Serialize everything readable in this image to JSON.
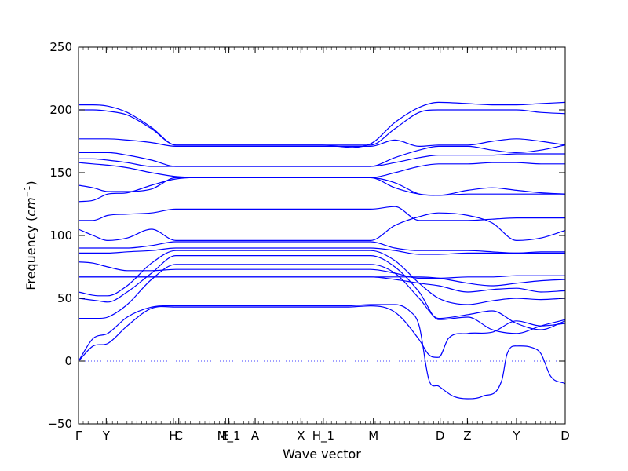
{
  "chart_data": {
    "type": "line",
    "title": "",
    "xlabel": "Wave vector",
    "ylabel_text": "Frequency (",
    "ylabel_unit": "cm",
    "ylabel_exp": "−1",
    "ylabel_close": ")",
    "ylim": [
      -50,
      250
    ],
    "yticks": [
      -50,
      0,
      50,
      100,
      150,
      200,
      250
    ],
    "xlim": [
      0,
      1
    ],
    "xticks": [
      {
        "label": "Γ",
        "x": 0.0
      },
      {
        "label": "Y",
        "x": 0.057
      },
      {
        "label": "H",
        "x": 0.195
      },
      {
        "label": "C",
        "x": 0.206
      },
      {
        "label": "E",
        "x": 0.302
      },
      {
        "label": "M_1",
        "x": 0.309
      },
      {
        "label": "A",
        "x": 0.363
      },
      {
        "label": "X",
        "x": 0.457
      },
      {
        "label": "H_1",
        "x": 0.503
      },
      {
        "label": "M",
        "x": 0.606
      },
      {
        "label": "D",
        "x": 0.743
      },
      {
        "label": "Z",
        "x": 0.799
      },
      {
        "label": "Y",
        "x": 0.9
      },
      {
        "label": "D",
        "x": 1.0
      }
    ],
    "zero_line": true,
    "series_color": "#0000ff",
    "series": [
      {
        "x": [
          0,
          0.03,
          0.06,
          0.1,
          0.15,
          0.2,
          0.25,
          0.3,
          0.35,
          0.45,
          0.55,
          0.6,
          0.65,
          0.7,
          0.72,
          0.74,
          0.76,
          0.8,
          0.85,
          0.9,
          0.95,
          1.0
        ],
        "values": [
          0,
          12,
          14,
          28,
          42,
          43,
          43,
          43,
          43,
          43,
          43,
          44,
          39,
          17,
          5,
          3,
          18,
          22,
          23,
          32,
          28,
          30
        ]
      },
      {
        "x": [
          0,
          0.03,
          0.06,
          0.1,
          0.15,
          0.2,
          0.25,
          0.3,
          0.35,
          0.45,
          0.55,
          0.6,
          0.65,
          0.68,
          0.7,
          0.72,
          0.74,
          0.77,
          0.8,
          0.83,
          0.87,
          0.88,
          0.9,
          0.93,
          0.95,
          0.97,
          1.0
        ],
        "values": [
          0,
          18,
          22,
          35,
          43,
          44,
          44,
          44,
          44,
          44,
          44,
          45,
          45,
          40,
          28,
          -15,
          -20,
          -28,
          -30,
          -28,
          -15,
          5,
          12,
          11,
          6,
          -12,
          -18
        ]
      },
      {
        "x": [
          0,
          0.04,
          0.06,
          0.1,
          0.15,
          0.2,
          0.3,
          0.4,
          0.5,
          0.6,
          0.65,
          0.7,
          0.74,
          0.8,
          0.85,
          0.9,
          0.95,
          1.0
        ],
        "values": [
          34,
          34,
          35,
          45,
          65,
          77,
          77,
          77,
          77,
          77,
          70,
          50,
          34,
          37,
          40,
          30,
          25,
          32
        ]
      },
      {
        "x": [
          0,
          0.04,
          0.06,
          0.1,
          0.15,
          0.2,
          0.3,
          0.4,
          0.5,
          0.6,
          0.65,
          0.7,
          0.74,
          0.8,
          0.85,
          0.9,
          0.95,
          1.0
        ],
        "values": [
          50,
          48,
          47,
          55,
          70,
          84,
          84,
          84,
          84,
          84,
          75,
          55,
          33,
          35,
          25,
          22,
          28,
          33
        ]
      },
      {
        "x": [
          0,
          0.04,
          0.06,
          0.1,
          0.15,
          0.2,
          0.3,
          0.4,
          0.5,
          0.6,
          0.65,
          0.7,
          0.74,
          0.8,
          0.85,
          0.9,
          0.95,
          1.0
        ],
        "values": [
          55,
          52,
          52,
          60,
          78,
          88,
          88,
          88,
          88,
          88,
          80,
          62,
          50,
          45,
          48,
          50,
          49,
          50
        ]
      },
      {
        "x": [
          0,
          0.03,
          0.06,
          0.1,
          0.15,
          0.2,
          0.3,
          0.4,
          0.5,
          0.6,
          0.65,
          0.7,
          0.74,
          0.8,
          0.85,
          0.9,
          0.95,
          1.0
        ],
        "values": [
          67,
          67,
          67,
          67,
          67,
          67,
          67,
          67,
          67,
          67,
          65,
          62,
          60,
          55,
          57,
          58,
          55,
          56
        ]
      },
      {
        "x": [
          0,
          0.03,
          0.06,
          0.1,
          0.15,
          0.2,
          0.3,
          0.4,
          0.5,
          0.6,
          0.65,
          0.7,
          0.74,
          0.8,
          0.85,
          0.9,
          0.95,
          1.0
        ],
        "values": [
          67,
          67,
          67,
          67,
          67,
          67,
          67,
          67,
          67,
          67,
          67,
          67,
          66,
          62,
          60,
          62,
          64,
          65
        ]
      },
      {
        "x": [
          0,
          0.03,
          0.06,
          0.1,
          0.15,
          0.2,
          0.3,
          0.4,
          0.5,
          0.6,
          0.65,
          0.7,
          0.74,
          0.8,
          0.85,
          0.9,
          0.95,
          1.0
        ],
        "values": [
          79,
          78,
          75,
          72,
          72,
          73,
          73,
          73,
          73,
          73,
          70,
          66,
          66,
          67,
          67,
          68,
          68,
          68
        ]
      },
      {
        "x": [
          0,
          0.03,
          0.06,
          0.1,
          0.15,
          0.2,
          0.3,
          0.4,
          0.5,
          0.6,
          0.65,
          0.7,
          0.74,
          0.8,
          0.85,
          0.9,
          0.95,
          1.0
        ],
        "values": [
          86,
          86,
          86,
          87,
          88,
          90,
          90,
          90,
          90,
          90,
          88,
          85,
          85,
          86,
          86,
          86,
          86,
          86
        ]
      },
      {
        "x": [
          0,
          0.03,
          0.06,
          0.1,
          0.15,
          0.2,
          0.3,
          0.4,
          0.5,
          0.6,
          0.65,
          0.7,
          0.74,
          0.8,
          0.85,
          0.9,
          0.95,
          1.0
        ],
        "values": [
          90,
          90,
          90,
          90,
          92,
          95,
          95,
          95,
          95,
          95,
          90,
          88,
          88,
          88,
          87,
          86,
          87,
          87
        ]
      },
      {
        "x": [
          0,
          0.03,
          0.06,
          0.1,
          0.15,
          0.2,
          0.3,
          0.4,
          0.5,
          0.6,
          0.65,
          0.7,
          0.74,
          0.8,
          0.85,
          0.9,
          0.95,
          1.0
        ],
        "values": [
          105,
          100,
          96,
          98,
          105,
          96,
          96,
          96,
          96,
          96,
          108,
          115,
          118,
          116,
          110,
          96,
          98,
          104
        ]
      },
      {
        "x": [
          0,
          0.03,
          0.06,
          0.1,
          0.15,
          0.2,
          0.3,
          0.4,
          0.5,
          0.6,
          0.65,
          0.7,
          0.74,
          0.8,
          0.85,
          0.9,
          0.95,
          1.0
        ],
        "values": [
          112,
          112,
          116,
          117,
          118,
          121,
          121,
          121,
          121,
          121,
          123,
          112,
          112,
          112,
          113,
          114,
          114,
          114
        ]
      },
      {
        "x": [
          0,
          0.03,
          0.06,
          0.1,
          0.15,
          0.2,
          0.3,
          0.4,
          0.5,
          0.6,
          0.65,
          0.7,
          0.74,
          0.8,
          0.85,
          0.9,
          0.95,
          1.0
        ],
        "values": [
          127,
          128,
          133,
          134,
          140,
          145,
          146,
          146,
          146,
          146,
          138,
          133,
          132,
          133,
          133,
          133,
          133,
          133
        ]
      },
      {
        "x": [
          0,
          0.03,
          0.06,
          0.1,
          0.15,
          0.2,
          0.3,
          0.4,
          0.5,
          0.6,
          0.65,
          0.7,
          0.74,
          0.8,
          0.85,
          0.9,
          0.95,
          1.0
        ],
        "values": [
          140,
          138,
          135,
          135,
          137,
          146,
          146,
          146,
          146,
          146,
          142,
          133,
          132,
          136,
          138,
          136,
          134,
          133
        ]
      },
      {
        "x": [
          0,
          0.03,
          0.06,
          0.1,
          0.15,
          0.2,
          0.3,
          0.4,
          0.5,
          0.6,
          0.65,
          0.7,
          0.74,
          0.8,
          0.85,
          0.9,
          0.95,
          1.0
        ],
        "values": [
          158,
          157,
          156,
          154,
          150,
          147,
          146,
          146,
          146,
          146,
          150,
          155,
          157,
          157,
          158,
          158,
          157,
          157
        ]
      },
      {
        "x": [
          0,
          0.03,
          0.06,
          0.1,
          0.15,
          0.2,
          0.3,
          0.4,
          0.5,
          0.6,
          0.65,
          0.7,
          0.74,
          0.8,
          0.85,
          0.9,
          0.95,
          1.0
        ],
        "values": [
          161,
          161,
          160,
          158,
          155,
          155,
          155,
          155,
          155,
          155,
          158,
          162,
          164,
          164,
          164,
          165,
          165,
          165
        ]
      },
      {
        "x": [
          0,
          0.03,
          0.06,
          0.1,
          0.15,
          0.2,
          0.3,
          0.4,
          0.5,
          0.6,
          0.65,
          0.7,
          0.74,
          0.8,
          0.85,
          0.9,
          0.95,
          1.0
        ],
        "values": [
          166,
          166,
          166,
          164,
          160,
          155,
          155,
          155,
          155,
          155,
          162,
          168,
          171,
          171,
          168,
          166,
          168,
          172
        ]
      },
      {
        "x": [
          0,
          0.03,
          0.06,
          0.1,
          0.15,
          0.2,
          0.3,
          0.4,
          0.5,
          0.6,
          0.65,
          0.7,
          0.74,
          0.8,
          0.85,
          0.9,
          0.95,
          1.0
        ],
        "values": [
          177,
          177,
          177,
          176,
          174,
          171,
          171,
          171,
          171,
          171,
          176,
          171,
          172,
          172,
          175,
          177,
          175,
          172
        ]
      },
      {
        "x": [
          0,
          0.03,
          0.06,
          0.1,
          0.15,
          0.2,
          0.3,
          0.4,
          0.5,
          0.6,
          0.65,
          0.7,
          0.74,
          0.8,
          0.85,
          0.9,
          0.95,
          1.0
        ],
        "values": [
          200,
          200,
          199,
          196,
          185,
          172,
          172,
          172,
          172,
          172,
          185,
          198,
          200,
          200,
          200,
          200,
          198,
          197
        ]
      },
      {
        "x": [
          0,
          0.03,
          0.06,
          0.1,
          0.15,
          0.2,
          0.3,
          0.4,
          0.5,
          0.6,
          0.65,
          0.7,
          0.74,
          0.8,
          0.85,
          0.9,
          0.95,
          1.0
        ],
        "values": [
          204,
          204,
          203,
          198,
          186,
          172,
          172,
          172,
          172,
          173,
          190,
          202,
          206,
          205,
          204,
          204,
          205,
          206
        ]
      }
    ]
  }
}
